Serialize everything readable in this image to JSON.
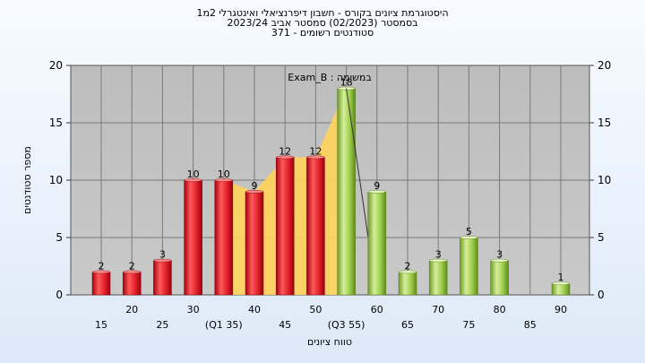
{
  "chart_data": {
    "type": "bar",
    "title_lines": [
      "היסטוגרמת ציונים בקורס - חשבון דיפרנציאלי ואינטגרלי 2מ1",
      "בסמסטר  (02/2023)  סמסטר אביב 2023/24",
      "סטודנטים רשומים - 371"
    ],
    "task_label": "Exam_B : במשימה",
    "xlabel": "טווח ציונים",
    "ylabel": "מספר סטודנטים",
    "ylim": [
      0,
      20
    ],
    "yticks": [
      0,
      5,
      10,
      15,
      20
    ],
    "grid": true,
    "x_tick_labels_row1": [
      "20",
      "30",
      "40",
      "50",
      "60",
      "70",
      "80",
      "90"
    ],
    "x_tick_labels_row2": [
      "15",
      "25",
      "(Q1 35)",
      "45",
      "(Q3 55)",
      "65",
      "75",
      "85"
    ],
    "bars": [
      {
        "x": 15,
        "value": 2,
        "color": "red"
      },
      {
        "x": 20,
        "value": 2,
        "color": "red"
      },
      {
        "x": 25,
        "value": 3,
        "color": "red"
      },
      {
        "x": 30,
        "value": 10,
        "color": "red"
      },
      {
        "x": 35,
        "value": 10,
        "color": "red"
      },
      {
        "x": 40,
        "value": 9,
        "color": "red"
      },
      {
        "x": 45,
        "value": 12,
        "color": "red"
      },
      {
        "x": 50,
        "value": 12,
        "color": "red"
      },
      {
        "x": 55,
        "value": 18,
        "color": "green"
      },
      {
        "x": 60,
        "value": 9,
        "color": "green"
      },
      {
        "x": 65,
        "value": 2,
        "color": "green"
      },
      {
        "x": 70,
        "value": 3,
        "color": "green"
      },
      {
        "x": 75,
        "value": 5,
        "color": "green"
      },
      {
        "x": 80,
        "value": 3,
        "color": "green"
      },
      {
        "x": 90,
        "value": 1,
        "color": "green"
      }
    ],
    "iqr_area": {
      "from_x": 35,
      "to_x": 55,
      "color": "#ffd35a"
    },
    "colors": {
      "plot_bg": "#c0c0c0",
      "red_bar": "#e0202a",
      "green_bar": "#9ccc4a",
      "highlight_area": "#ffd35a"
    }
  }
}
